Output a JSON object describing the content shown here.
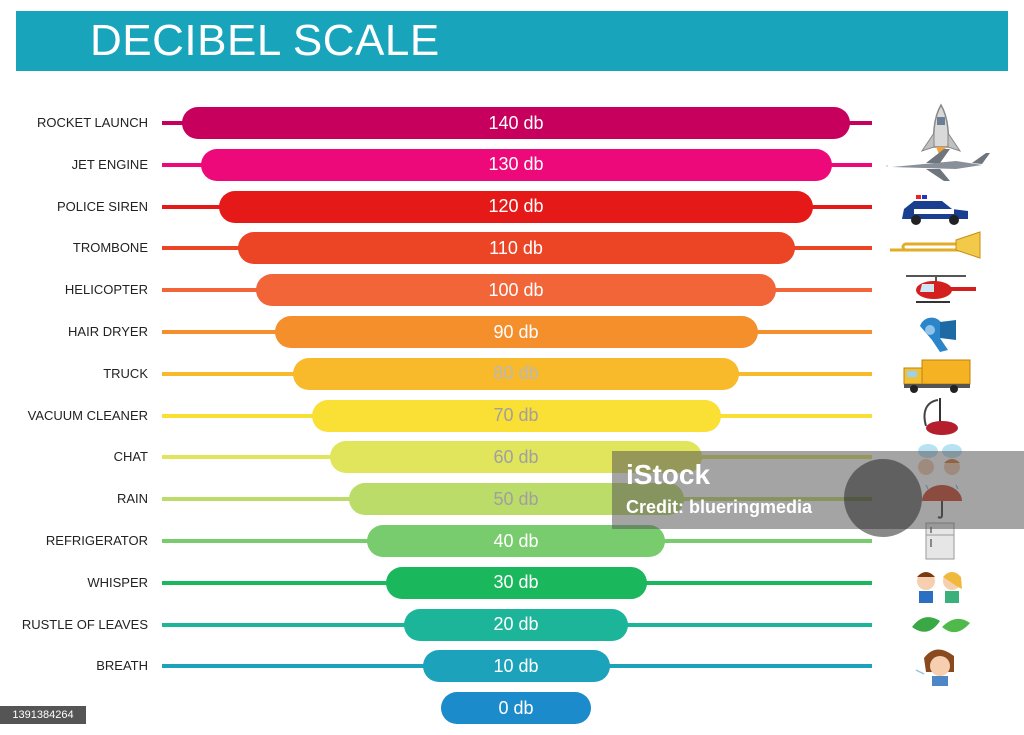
{
  "header": {
    "title": "DECIBEL SCALE"
  },
  "rows": [
    {
      "source": "ROCKET LAUNCH",
      "level": "140 db",
      "color": "#c8005d",
      "text": "#ffffff",
      "icon": "rocket-icon"
    },
    {
      "source": "JET ENGINE",
      "level": "130 db",
      "color": "#ee097a",
      "text": "#ffffff",
      "icon": "jet-icon"
    },
    {
      "source": "POLICE SIREN",
      "level": "120 db",
      "color": "#e61919",
      "text": "#ffffff",
      "icon": "police-car-icon"
    },
    {
      "source": "TROMBONE",
      "level": "110 db",
      "color": "#ec4526",
      "text": "#ffffff",
      "icon": "trombone-icon"
    },
    {
      "source": "HELICOPTER",
      "level": "100 db",
      "color": "#f26539",
      "text": "#ffffff",
      "icon": "helicopter-icon"
    },
    {
      "source": "HAIR DRYER",
      "level": "90 db",
      "color": "#f58f2c",
      "text": "#ffffff",
      "icon": "hair-dryer-icon"
    },
    {
      "source": "TRUCK",
      "level": "80 db",
      "color": "#f8b92a",
      "text": "#b9b9b9",
      "icon": "truck-icon"
    },
    {
      "source": "VACUUM CLEANER",
      "level": "70 db",
      "color": "#fadf35",
      "text": "#a0a0a0",
      "icon": "vacuum-cleaner-icon"
    },
    {
      "source": "CHAT",
      "level": "60 db",
      "color": "#e1e55b",
      "text": "#a0a0a0",
      "icon": "chat-icon"
    },
    {
      "source": "RAIN",
      "level": "50 db",
      "color": "#bcdc69",
      "text": "#a0a0a0",
      "icon": "umbrella-icon"
    },
    {
      "source": "REFRIGERATOR",
      "level": "40 db",
      "color": "#79cc6d",
      "text": "#ffffff",
      "icon": "refrigerator-icon"
    },
    {
      "source": "WHISPER",
      "level": "30 db",
      "color": "#1bb75d",
      "text": "#ffffff",
      "icon": "whisper-icon"
    },
    {
      "source": "RUSTLE OF LEAVES",
      "level": "20 db",
      "color": "#1cb59a",
      "text": "#ffffff",
      "icon": "leaves-icon"
    },
    {
      "source": "BREATH",
      "level": "10 db",
      "color": "#1ca3bb",
      "text": "#ffffff",
      "icon": "breath-icon"
    },
    {
      "source": "",
      "level": "0 db",
      "color": "#1b8bcb",
      "text": "#ffffff",
      "icon": ""
    }
  ],
  "watermark": {
    "brand": "iStock",
    "credit": "Credit: blueringmedia"
  },
  "stock_id": "1391384264"
}
